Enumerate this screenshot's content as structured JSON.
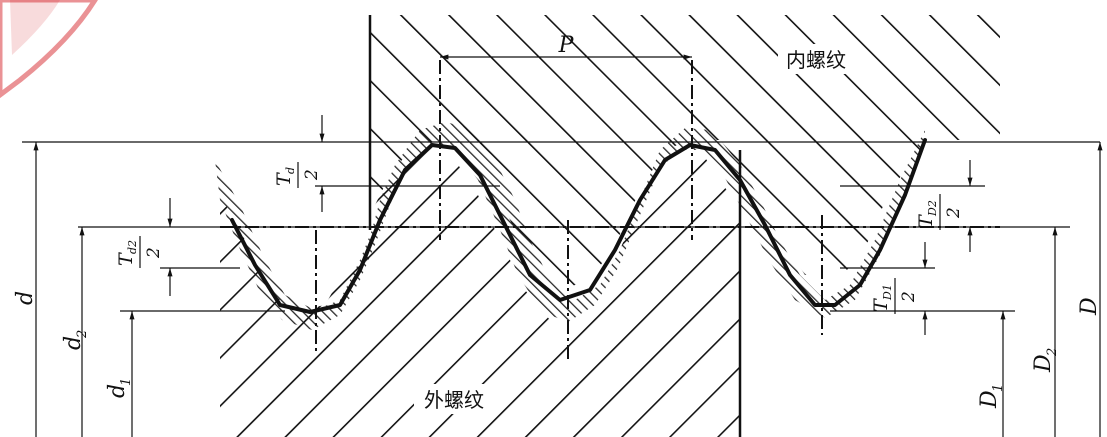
{
  "labels": {
    "internal_thread": "内螺纹",
    "external_thread": "外螺纹",
    "pitch": "P",
    "d": "d",
    "d2": "d",
    "d2_sub": "2",
    "d1": "d",
    "d1_sub": "1",
    "D": "D",
    "D2": "D",
    "D2_sub": "2",
    "D1": "D",
    "D1_sub": "1",
    "td_num": "T",
    "td_num_sub": "d",
    "td_den": "2",
    "td2_num": "T",
    "td2_num_sub": "d2",
    "td2_den": "2",
    "tD2_num": "T",
    "tD2_num_sub": "D2",
    "tD2_den": "2",
    "tD1_num": "T",
    "tD1_num_sub": "D1",
    "tD1_den": "2"
  },
  "colors": {
    "line": "#111111",
    "stamp": "#d9393e",
    "background": "#ffffff"
  }
}
